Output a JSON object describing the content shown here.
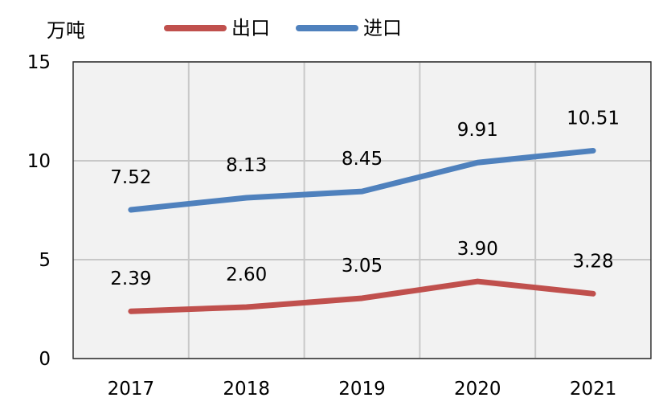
{
  "chart_data": {
    "type": "line",
    "unit_label": "万吨",
    "categories": [
      "2017",
      "2018",
      "2019",
      "2020",
      "2021"
    ],
    "ylim": [
      0,
      15
    ],
    "yticks": [
      "0",
      "5",
      "10",
      "15"
    ],
    "grid": true,
    "legend_position": "top",
    "series": [
      {
        "name": "出口",
        "color": "#c0504d",
        "values": [
          2.39,
          2.6,
          3.05,
          3.9,
          3.28
        ],
        "labels": [
          "2.39",
          "2.60",
          "3.05",
          "3.90",
          "3.28"
        ]
      },
      {
        "name": "进口",
        "color": "#4f81bd",
        "values": [
          7.52,
          8.13,
          8.45,
          9.91,
          10.51
        ],
        "labels": [
          "7.52",
          "8.13",
          "8.45",
          "9.91",
          "10.51"
        ]
      }
    ]
  },
  "colors": {
    "plot_background": "#f2f2f2",
    "grid": "#c8c8c8",
    "border": "#333333"
  }
}
